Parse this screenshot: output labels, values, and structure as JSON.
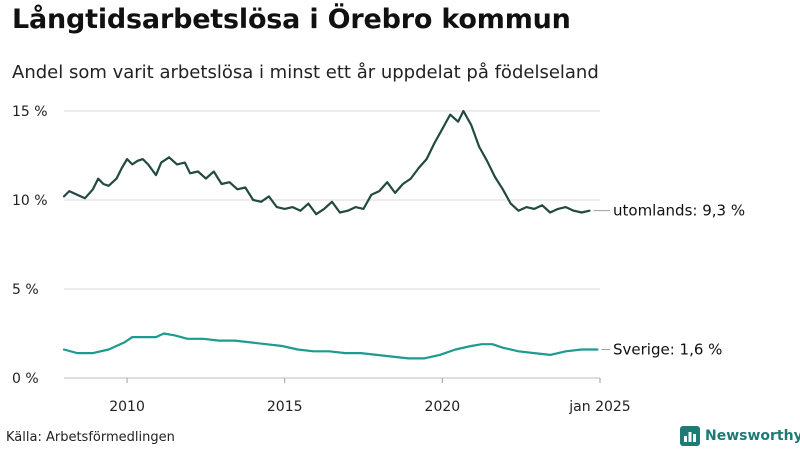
{
  "title": "Långtidsarbetslösa i Örebro kommun",
  "subtitle": "Andel som varit arbetslösa i minst ett år uppdelat på födelseland",
  "source": "Källa: Arbetsförmedlingen",
  "brand": {
    "name": "Newsworthy",
    "icon": "bar-chart-logo-icon",
    "color": "#1d7a74"
  },
  "chart_data": {
    "type": "line",
    "y_ticks": [
      "15 %",
      "10 %",
      "5 %",
      "0 %"
    ],
    "y_tick_values": [
      15,
      10,
      5,
      0
    ],
    "x_ticks": [
      "2010",
      "2015",
      "2020",
      "jan 2025"
    ],
    "x_tick_values": [
      "2010-01",
      "2015-01",
      "2020-01",
      "2025-01"
    ],
    "xlim": [
      "2008-01",
      "2025-01"
    ],
    "ylim": [
      0,
      15
    ],
    "grid": true,
    "series": [
      {
        "name": "utomlands",
        "end_label": "utomlands: 9,3 %",
        "color": "#234a40",
        "points": [
          [
            "2008-01",
            10.2
          ],
          [
            "2008-03",
            10.5
          ],
          [
            "2008-06",
            10.3
          ],
          [
            "2008-09",
            10.1
          ],
          [
            "2008-12",
            10.6
          ],
          [
            "2009-02",
            11.2
          ],
          [
            "2009-04",
            10.9
          ],
          [
            "2009-06",
            10.8
          ],
          [
            "2009-09",
            11.2
          ],
          [
            "2009-11",
            11.8
          ],
          [
            "2010-01",
            12.3
          ],
          [
            "2010-03",
            12.0
          ],
          [
            "2010-05",
            12.2
          ],
          [
            "2010-07",
            12.3
          ],
          [
            "2010-09",
            12.0
          ],
          [
            "2010-12",
            11.4
          ],
          [
            "2011-02",
            12.1
          ],
          [
            "2011-05",
            12.4
          ],
          [
            "2011-08",
            12.0
          ],
          [
            "2011-11",
            12.1
          ],
          [
            "2012-01",
            11.5
          ],
          [
            "2012-04",
            11.6
          ],
          [
            "2012-07",
            11.2
          ],
          [
            "2012-10",
            11.6
          ],
          [
            "2013-01",
            10.9
          ],
          [
            "2013-04",
            11.0
          ],
          [
            "2013-07",
            10.6
          ],
          [
            "2013-10",
            10.7
          ],
          [
            "2014-01",
            10.0
          ],
          [
            "2014-04",
            9.9
          ],
          [
            "2014-07",
            10.2
          ],
          [
            "2014-10",
            9.6
          ],
          [
            "2015-01",
            9.5
          ],
          [
            "2015-04",
            9.6
          ],
          [
            "2015-07",
            9.4
          ],
          [
            "2015-10",
            9.8
          ],
          [
            "2016-01",
            9.2
          ],
          [
            "2016-04",
            9.5
          ],
          [
            "2016-07",
            9.9
          ],
          [
            "2016-10",
            9.3
          ],
          [
            "2017-01",
            9.4
          ],
          [
            "2017-04",
            9.6
          ],
          [
            "2017-07",
            9.5
          ],
          [
            "2017-10",
            10.3
          ],
          [
            "2018-01",
            10.5
          ],
          [
            "2018-04",
            11.0
          ],
          [
            "2018-07",
            10.4
          ],
          [
            "2018-10",
            10.9
          ],
          [
            "2019-01",
            11.2
          ],
          [
            "2019-04",
            11.8
          ],
          [
            "2019-07",
            12.3
          ],
          [
            "2019-10",
            13.2
          ],
          [
            "2020-01",
            14.0
          ],
          [
            "2020-04",
            14.8
          ],
          [
            "2020-07",
            14.4
          ],
          [
            "2020-09",
            15.0
          ],
          [
            "2020-12",
            14.2
          ],
          [
            "2021-03",
            13.0
          ],
          [
            "2021-06",
            12.2
          ],
          [
            "2021-09",
            11.3
          ],
          [
            "2021-12",
            10.6
          ],
          [
            "2022-03",
            9.8
          ],
          [
            "2022-06",
            9.4
          ],
          [
            "2022-09",
            9.6
          ],
          [
            "2022-12",
            9.5
          ],
          [
            "2023-03",
            9.7
          ],
          [
            "2023-06",
            9.3
          ],
          [
            "2023-09",
            9.5
          ],
          [
            "2023-12",
            9.6
          ],
          [
            "2024-03",
            9.4
          ],
          [
            "2024-06",
            9.3
          ],
          [
            "2024-09",
            9.4
          ]
        ]
      },
      {
        "name": "Sverige",
        "end_label": "Sverige: 1,6 %",
        "color": "#1f9a90",
        "points": [
          [
            "2008-01",
            1.6
          ],
          [
            "2008-06",
            1.4
          ],
          [
            "2008-12",
            1.4
          ],
          [
            "2009-06",
            1.6
          ],
          [
            "2009-12",
            2.0
          ],
          [
            "2010-03",
            2.3
          ],
          [
            "2010-07",
            2.3
          ],
          [
            "2010-12",
            2.3
          ],
          [
            "2011-03",
            2.5
          ],
          [
            "2011-07",
            2.4
          ],
          [
            "2011-12",
            2.2
          ],
          [
            "2012-06",
            2.2
          ],
          [
            "2012-12",
            2.1
          ],
          [
            "2013-06",
            2.1
          ],
          [
            "2013-12",
            2.0
          ],
          [
            "2014-06",
            1.9
          ],
          [
            "2014-12",
            1.8
          ],
          [
            "2015-06",
            1.6
          ],
          [
            "2015-12",
            1.5
          ],
          [
            "2016-06",
            1.5
          ],
          [
            "2016-12",
            1.4
          ],
          [
            "2017-06",
            1.4
          ],
          [
            "2017-12",
            1.3
          ],
          [
            "2018-06",
            1.2
          ],
          [
            "2018-12",
            1.1
          ],
          [
            "2019-06",
            1.1
          ],
          [
            "2019-12",
            1.3
          ],
          [
            "2020-06",
            1.6
          ],
          [
            "2020-12",
            1.8
          ],
          [
            "2021-04",
            1.9
          ],
          [
            "2021-08",
            1.9
          ],
          [
            "2021-12",
            1.7
          ],
          [
            "2022-06",
            1.5
          ],
          [
            "2022-12",
            1.4
          ],
          [
            "2023-06",
            1.3
          ],
          [
            "2023-12",
            1.5
          ],
          [
            "2024-06",
            1.6
          ],
          [
            "2024-12",
            1.6
          ]
        ]
      }
    ]
  }
}
